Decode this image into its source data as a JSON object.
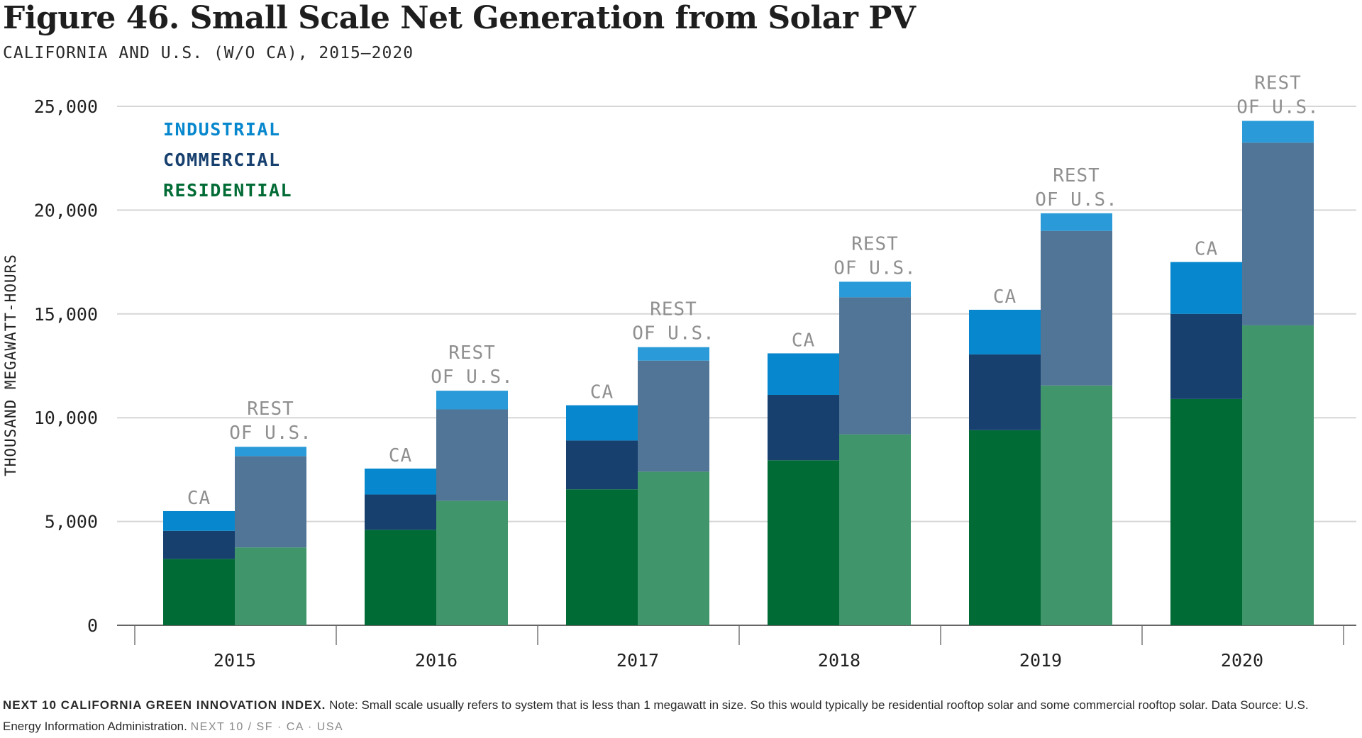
{
  "title": "Figure 46. Small Scale Net Generation from Solar PV",
  "subtitle": "CALIFORNIA AND U.S. (W/O CA), 2015–2020",
  "footer": {
    "source_bold": "NEXT 10 CALIFORNIA GREEN INNOVATION INDEX.",
    "note": " Note: Small scale usually refers to system that is less than 1 megawatt in size. So this would typically be residential rooftop solar and some commercial rooftop solar. Data Source: U.S. Energy Information Administration.",
    "brand": "NEXT 10  /  SF · CA · USA"
  },
  "chart_data": {
    "type": "bar",
    "stacked": true,
    "categories": [
      "2015",
      "2016",
      "2017",
      "2018",
      "2019",
      "2020"
    ],
    "groups": [
      "CA",
      "REST OF U.S."
    ],
    "group_labels": {
      "ca": "CA",
      "rest_line1": "REST",
      "rest_line2": "OF U.S."
    },
    "series": [
      {
        "name": "RESIDENTIAL",
        "ca": [
          3200,
          4600,
          6550,
          7950,
          9400,
          10900
        ],
        "rest": [
          3750,
          6000,
          7400,
          9200,
          11550,
          14450
        ]
      },
      {
        "name": "COMMERCIAL",
        "ca": [
          1350,
          1700,
          2350,
          3150,
          3650,
          4100
        ],
        "rest": [
          4400,
          4400,
          5350,
          6600,
          7450,
          8800
        ]
      },
      {
        "name": "INDUSTRIAL",
        "ca": [
          950,
          1250,
          1700,
          2000,
          2150,
          2500
        ],
        "rest": [
          450,
          900,
          650,
          750,
          850,
          1050
        ]
      }
    ],
    "ylabel": "THOUSAND MEGAWATT-HOURS",
    "yticks": [
      0,
      5000,
      10000,
      15000,
      20000,
      25000
    ],
    "ytick_labels": [
      "0",
      "5,000",
      "10,000",
      "15,000",
      "20,000",
      "25,000"
    ],
    "ylim": [
      0,
      25000
    ],
    "grid": true,
    "legend_placement": "top-left",
    "colors": {
      "ca": {
        "RESIDENTIAL": "#006b35",
        "COMMERCIAL": "#17406f",
        "INDUSTRIAL": "#0787cd"
      },
      "rest": {
        "RESIDENTIAL": "#41956a",
        "COMMERCIAL": "#507596",
        "INDUSTRIAL": "#2a9bd8"
      },
      "legend": {
        "INDUSTRIAL": "#0787cd",
        "COMMERCIAL": "#17406f",
        "RESIDENTIAL": "#006b35"
      },
      "group_label": "#8f8f8f",
      "grid": "#d6d6d6",
      "axis": "#999999"
    }
  }
}
